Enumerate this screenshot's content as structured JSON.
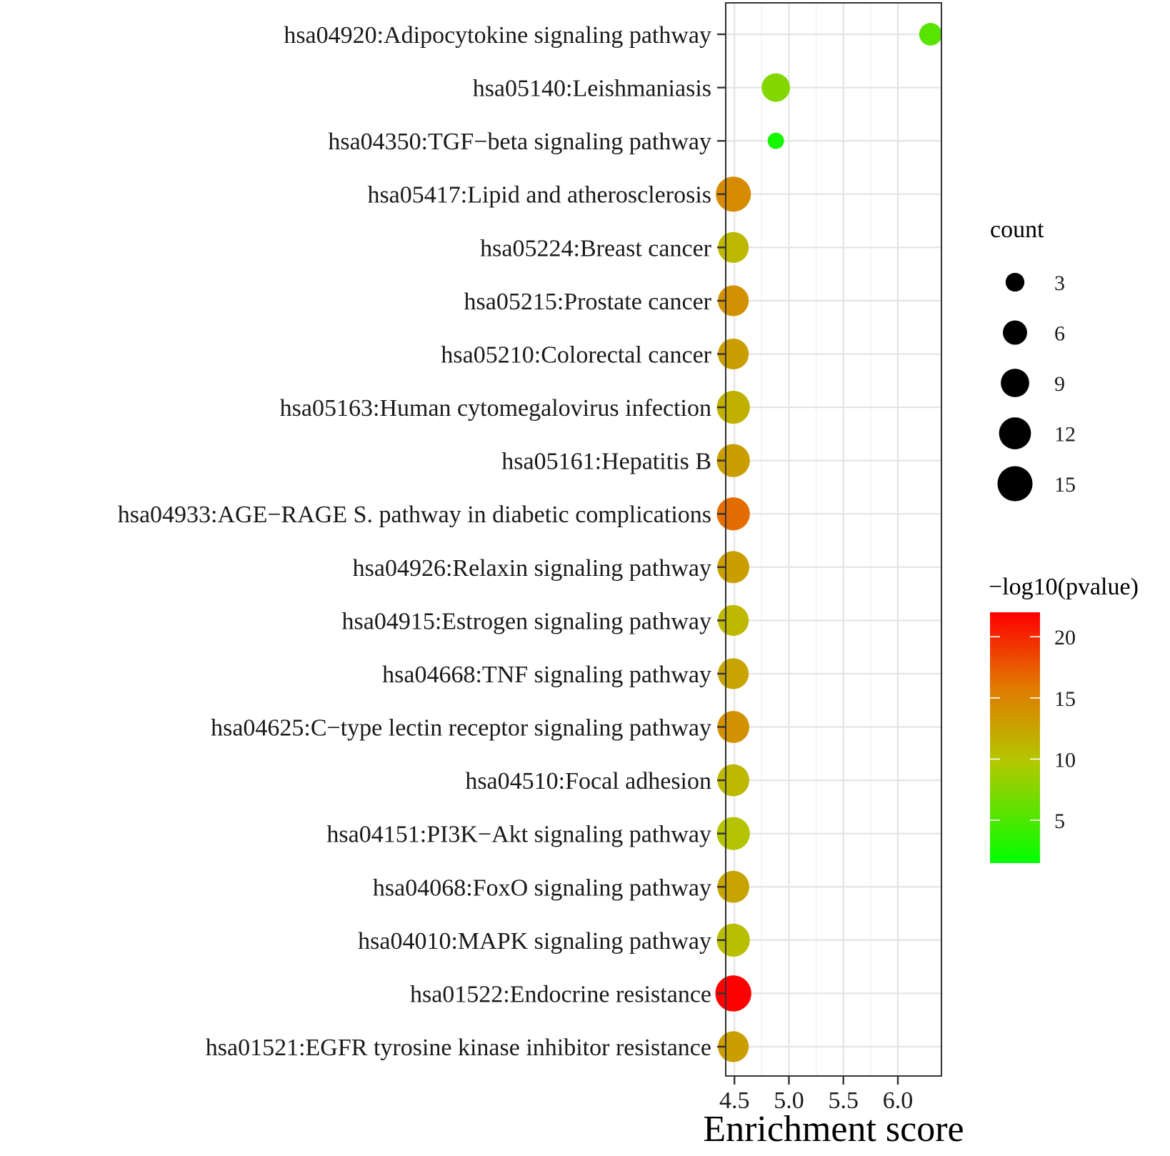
{
  "chart_data": {
    "type": "scatter",
    "xlabel": "Enrichment score",
    "ylabel": "",
    "xlim": [
      4.42,
      6.4
    ],
    "xticks": [
      "4.5",
      "5.0",
      "5.5",
      "6.0"
    ],
    "grid": true,
    "terms": [
      "hsa04920:Adipocytokine signaling pathway",
      "hsa05140:Leishmaniasis",
      "hsa04350:TGF−beta signaling pathway",
      "hsa05417:Lipid and atherosclerosis",
      "hsa05224:Breast cancer",
      "hsa05215:Prostate cancer",
      "hsa05210:Colorectal cancer",
      "hsa05163:Human cytomegalovirus infection",
      "hsa05161:Hepatitis B",
      "hsa04933:AGE−RAGE S. pathway in diabetic complications",
      "hsa04926:Relaxin signaling pathway",
      "hsa04915:Estrogen signaling pathway",
      "hsa04668:TNF signaling pathway",
      "hsa04625:C−type lectin receptor signaling pathway",
      "hsa04510:Focal adhesion",
      "hsa04151:PI3K−Akt signaling pathway",
      "hsa04068:FoxO signaling pathway",
      "hsa04010:MAPK signaling pathway",
      "hsa01522:Endocrine resistance",
      "hsa01521:EGFR tyrosine kinase inhibitor resistance"
    ],
    "points": [
      {
        "enrichment": 6.3,
        "count": 5,
        "neglog10p": 5.5
      },
      {
        "enrichment": 4.88,
        "count": 9,
        "neglog10p": 7.5
      },
      {
        "enrichment": 4.88,
        "count": 2,
        "neglog10p": 2.5
      },
      {
        "enrichment": 4.49,
        "count": 15,
        "neglog10p": 14.5
      },
      {
        "enrichment": 4.49,
        "count": 11,
        "neglog10p": 11.0
      },
      {
        "enrichment": 4.49,
        "count": 11,
        "neglog10p": 14.0
      },
      {
        "enrichment": 4.49,
        "count": 11,
        "neglog10p": 13.0
      },
      {
        "enrichment": 4.49,
        "count": 13,
        "neglog10p": 11.5
      },
      {
        "enrichment": 4.49,
        "count": 13,
        "neglog10p": 13.0
      },
      {
        "enrichment": 4.49,
        "count": 13,
        "neglog10p": 16.5
      },
      {
        "enrichment": 4.49,
        "count": 12,
        "neglog10p": 13.0
      },
      {
        "enrichment": 4.49,
        "count": 11,
        "neglog10p": 11.0
      },
      {
        "enrichment": 4.49,
        "count": 11,
        "neglog10p": 12.5
      },
      {
        "enrichment": 4.49,
        "count": 12,
        "neglog10p": 14.0
      },
      {
        "enrichment": 4.49,
        "count": 12,
        "neglog10p": 11.0
      },
      {
        "enrichment": 4.49,
        "count": 13,
        "neglog10p": 10.0
      },
      {
        "enrichment": 4.49,
        "count": 12,
        "neglog10p": 12.5
      },
      {
        "enrichment": 4.49,
        "count": 13,
        "neglog10p": 10.5
      },
      {
        "enrichment": 4.49,
        "count": 16,
        "neglog10p": 22.0
      },
      {
        "enrichment": 4.49,
        "count": 11,
        "neglog10p": 13.0
      }
    ],
    "size_legend": {
      "title": "count",
      "values": [
        3,
        6,
        9,
        12,
        15
      ],
      "labels": [
        "3",
        "6",
        "9",
        "12",
        "15"
      ]
    },
    "color_legend": {
      "title": "−log10(pvalue)",
      "min": 1.5,
      "max": 22,
      "ticks": [
        5,
        10,
        15,
        20
      ],
      "labels": [
        "5",
        "10",
        "15",
        "20"
      ],
      "colors": [
        "#00ff00",
        "#b3c800",
        "#e07a00",
        "#ff0000"
      ]
    }
  }
}
